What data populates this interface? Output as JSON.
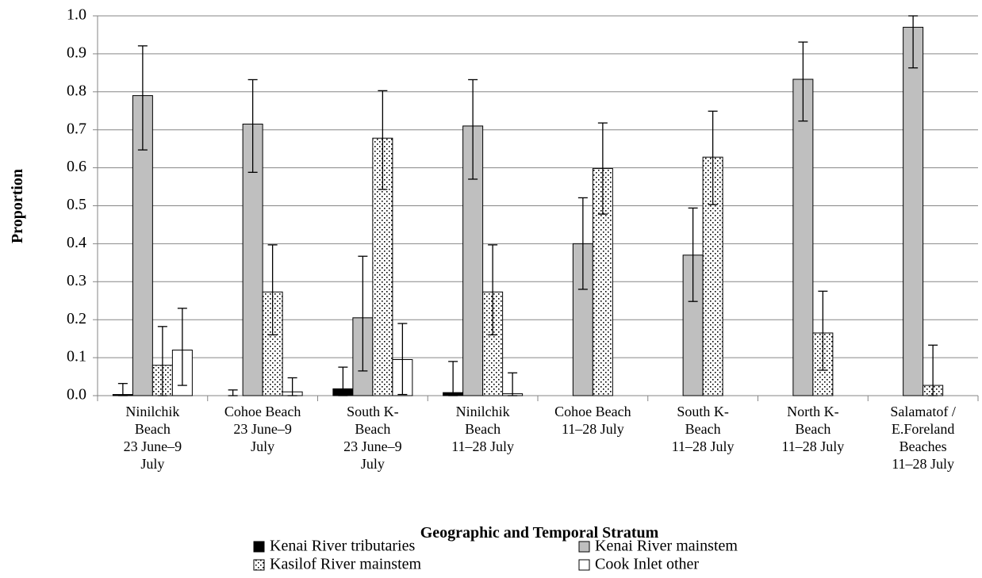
{
  "chart_data": {
    "type": "bar",
    "x_label": "Geographic and Temporal Stratum",
    "y_label": "Proportion",
    "categories": [
      "Ninilchik\nBeach\n23 June–9\nJuly",
      "Cohoe Beach\n23 June–9\nJuly",
      "South K-\nBeach\n23 June–9\nJuly",
      "Ninilchik\nBeach\n11–28 July",
      "Cohoe Beach\n11–28 July",
      "South K-\nBeach\n11–28 July",
      "North K-\nBeach\n11–28 July",
      "Salamatof /\nE.Foreland\nBeaches\n11–28 July"
    ],
    "series": [
      {
        "name": "Kenai River tributaries",
        "color": "#000000",
        "fill": "solid",
        "values": [
          0.003,
          0,
          0.018,
          0.008,
          0,
          0,
          0,
          0
        ],
        "lower": [
          0,
          0,
          0,
          0,
          null,
          null,
          null,
          null
        ],
        "upper": [
          0.032,
          0.015,
          0.075,
          0.09,
          null,
          null,
          null,
          null
        ]
      },
      {
        "name": "Kenai River mainstem",
        "color": "#bfbfbf",
        "fill": "solid",
        "values": [
          0.79,
          0.715,
          0.205,
          0.71,
          0.4,
          0.37,
          0.833,
          0.97
        ],
        "lower": [
          0.647,
          0.588,
          0.065,
          0.57,
          0.28,
          0.248,
          0.723,
          0.863
        ],
        "upper": [
          0.921,
          0.832,
          0.367,
          0.832,
          0.521,
          0.494,
          0.931,
          1.0
        ]
      },
      {
        "name": "Kasilof River mainstem",
        "color": "#ffffff",
        "fill": "dots",
        "values": [
          0.08,
          0.273,
          0.678,
          0.273,
          0.598,
          0.628,
          0.165,
          0.027
        ],
        "lower": [
          0,
          0.16,
          0.543,
          0.16,
          0.478,
          0.503,
          0.067,
          0
        ],
        "upper": [
          0.182,
          0.397,
          0.803,
          0.397,
          0.718,
          0.749,
          0.275,
          0.133
        ]
      },
      {
        "name": "Cook Inlet other",
        "color": "#ffffff",
        "fill": "solid",
        "values": [
          0.12,
          0.01,
          0.095,
          0.005,
          0,
          0,
          0,
          0
        ],
        "lower": [
          0.027,
          0,
          0.003,
          0,
          null,
          null,
          null,
          null
        ],
        "upper": [
          0.23,
          0.047,
          0.19,
          0.06,
          null,
          null,
          null,
          null
        ]
      }
    ],
    "ylim": [
      0,
      1
    ],
    "yticks": [
      {
        "value": 0,
        "label": "0.0"
      },
      0.1,
      0.2,
      0.3,
      0.4,
      0.5,
      0.6,
      0.7,
      0.8,
      0.9,
      {
        "value": 1,
        "label": "1.0"
      }
    ],
    "grid": true
  }
}
